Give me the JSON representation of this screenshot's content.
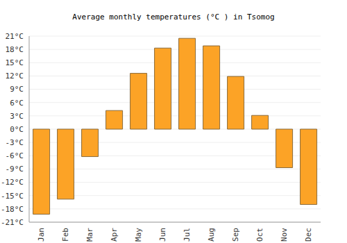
{
  "chart_data": {
    "type": "bar",
    "title": "Average monthly temperatures (°C ) in Tsomog",
    "categories": [
      "Jan",
      "Feb",
      "Mar",
      "Apr",
      "May",
      "Jun",
      "Jul",
      "Aug",
      "Sep",
      "Oct",
      "Nov",
      "Dec"
    ],
    "values": [
      -19.2,
      -15.8,
      -6.2,
      4.2,
      12.6,
      18.3,
      20.5,
      18.8,
      11.9,
      3.1,
      -8.7,
      -17.0
    ],
    "color": "#fca326",
    "ylim": [
      -21,
      21
    ],
    "yticks": [
      {
        "value": -21,
        "label": "-21°C"
      },
      {
        "value": -18,
        "label": "-18°C"
      },
      {
        "value": -15,
        "label": "-15°C"
      },
      {
        "value": -12,
        "label": "-12°C"
      },
      {
        "value": -9,
        "label": "-9°C"
      },
      {
        "value": -6,
        "label": "-6°C"
      },
      {
        "value": -3,
        "label": "-3°C"
      },
      {
        "value": 0,
        "label": "0°C"
      },
      {
        "value": 3,
        "label": "3°C"
      },
      {
        "value": 6,
        "label": "6°C"
      },
      {
        "value": 9,
        "label": "9°C"
      },
      {
        "value": 12,
        "label": "12°C"
      },
      {
        "value": 15,
        "label": "15°C"
      },
      {
        "value": 18,
        "label": "18°C"
      },
      {
        "value": 21,
        "label": "21°C"
      }
    ],
    "grid": true
  }
}
